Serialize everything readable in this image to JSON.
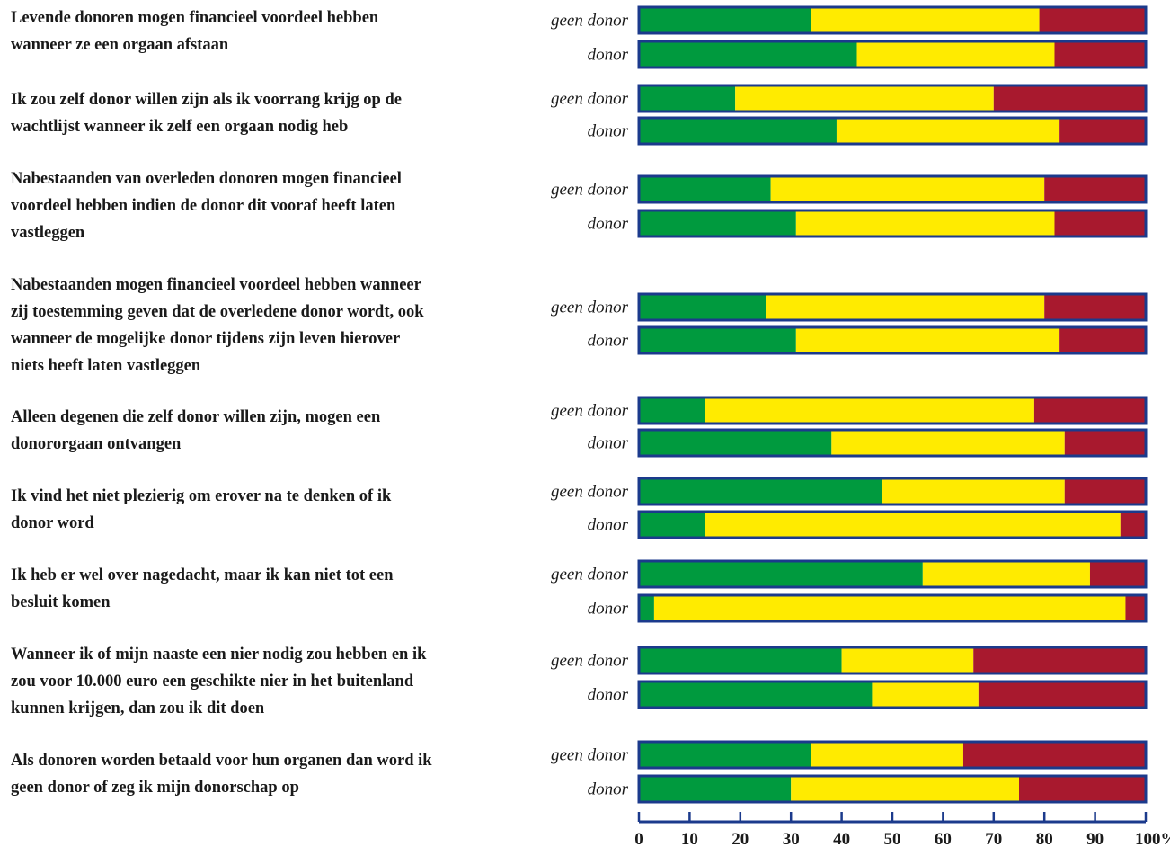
{
  "colors": {
    "green": "#009a3e",
    "yellow": "#ffeb00",
    "red": "#a8192e",
    "border": "#1b3a8c",
    "text": "#1a1a1a"
  },
  "chart_data": {
    "type": "bar",
    "orientation": "horizontal",
    "stacked": true,
    "series_colors": [
      "#009a3e",
      "#ffeb00",
      "#a8192e"
    ],
    "xlim": [
      0,
      100
    ],
    "xticks": [
      "0",
      "10",
      "20",
      "30",
      "40",
      "50",
      "60",
      "70",
      "80",
      "90",
      "100%"
    ],
    "grid": false,
    "items": [
      {
        "statement": "Levende donoren mogen financieel voordeel hebben\nwanneer ze een orgaan afstaan",
        "bars": [
          {
            "label": "geen donor",
            "values": [
              34,
              45,
              21
            ]
          },
          {
            "label": "donor",
            "values": [
              43,
              39,
              18
            ]
          }
        ]
      },
      {
        "statement": "Ik zou zelf donor willen zijn als ik voorrang krijg op de\nwachtlijst wanneer ik zelf een orgaan nodig heb",
        "bars": [
          {
            "label": "geen donor",
            "values": [
              19,
              51,
              30
            ]
          },
          {
            "label": "donor",
            "values": [
              39,
              44,
              17
            ]
          }
        ]
      },
      {
        "statement": "Nabestaanden van overleden donoren mogen financieel\nvoordeel hebben indien de donor dit vooraf heeft laten\nvastleggen",
        "bars": [
          {
            "label": "geen donor",
            "values": [
              26,
              54,
              20
            ]
          },
          {
            "label": "donor",
            "values": [
              31,
              51,
              18
            ]
          }
        ]
      },
      {
        "statement": "Nabestaanden mogen financieel voordeel hebben wanneer\nzij toestemming geven dat de overledene donor wordt, ook\nwanneer de mogelijke donor tijdens zijn leven hierover\nniets heeft laten vastleggen",
        "bars": [
          {
            "label": "geen donor",
            "values": [
              25,
              55,
              20
            ]
          },
          {
            "label": "donor",
            "values": [
              31,
              52,
              17
            ]
          }
        ]
      },
      {
        "statement": "Alleen degenen die zelf donor willen zijn, mogen een\ndonororgaan ontvangen",
        "bars": [
          {
            "label": "geen donor",
            "values": [
              13,
              65,
              22
            ]
          },
          {
            "label": "donor",
            "values": [
              38,
              46,
              16
            ]
          }
        ]
      },
      {
        "statement": "Ik vind het niet plezierig om erover na te denken of ik\ndonor word",
        "bars": [
          {
            "label": "geen donor",
            "values": [
              48,
              36,
              16
            ]
          },
          {
            "label": "donor",
            "values": [
              13,
              82,
              5
            ]
          }
        ]
      },
      {
        "statement": "Ik heb er wel over nagedacht, maar ik kan niet tot een\nbesluit komen",
        "bars": [
          {
            "label": "geen donor",
            "values": [
              56,
              33,
              11
            ]
          },
          {
            "label": "donor",
            "values": [
              3,
              93,
              4
            ]
          }
        ]
      },
      {
        "statement": "Wanneer ik of mijn naaste een nier nodig zou hebben en ik\nzou voor 10.000 euro een geschikte nier in het buitenland\nkunnen krijgen, dan zou ik dit doen",
        "bars": [
          {
            "label": "geen donor",
            "values": [
              40,
              26,
              34
            ]
          },
          {
            "label": "donor",
            "values": [
              46,
              21,
              33
            ]
          }
        ]
      },
      {
        "statement": "Als donoren worden betaald voor hun organen dan word ik\ngeen donor of zeg ik mijn donorschap op",
        "bars": [
          {
            "label": "geen donor",
            "values": [
              34,
              30,
              36
            ]
          },
          {
            "label": "donor",
            "values": [
              30,
              45,
              25
            ]
          }
        ]
      }
    ]
  }
}
